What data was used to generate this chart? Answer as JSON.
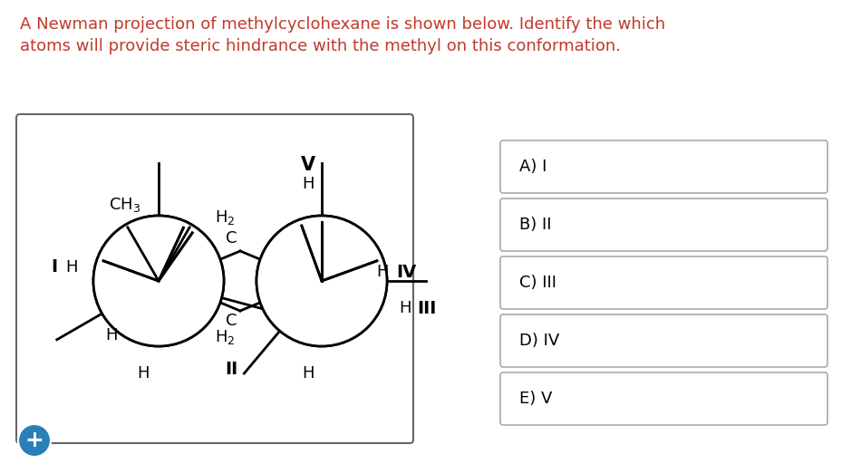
{
  "title_line1": "A Newman projection of methylcyclohexane is shown below. Identify the which",
  "title_line2": "atoms will provide steric hindrance with the methyl on this conformation.",
  "title_color": "#c0392b",
  "title_fontsize": 13,
  "bg_color": "#ffffff",
  "answer_options": [
    "A) I",
    "B) II",
    "C) III",
    "D) IV",
    "E) V"
  ],
  "plus_button_color": "#2980b9"
}
